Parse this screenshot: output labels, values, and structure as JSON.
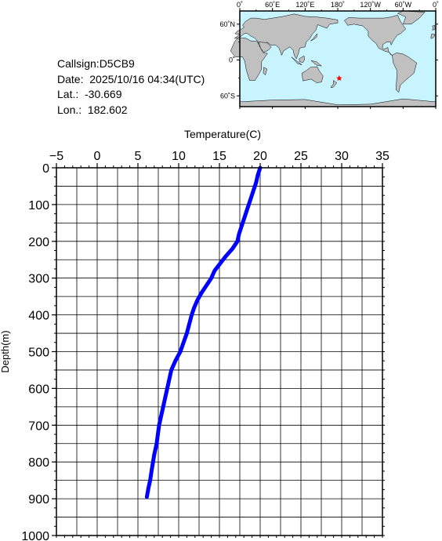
{
  "info": {
    "callsign": "Callsign:D5CB9",
    "date": "Date:  2025/10/16 04:34(UTC)",
    "lat": "Lat.:  -30.669",
    "lon": "Lon.:  182.602"
  },
  "map": {
    "lon_labels": [
      "0˚",
      "60˚E",
      "120˚E",
      "180˚",
      "120˚W",
      "60˚W",
      "0˚"
    ],
    "lat_labels": [
      "60˚N",
      "0˚",
      "60˚S"
    ],
    "station_lon": 182.602,
    "station_lat": -30.669,
    "ocean_color": "#c8f4ff",
    "land_color": "#c0c0c0",
    "marker_color": "#ff0000",
    "marker_icon": "star-icon"
  },
  "chart_data": {
    "type": "line",
    "xlabel": "Temperature(C)",
    "ylabel": "Depth(m)",
    "xlim": [
      -5,
      35
    ],
    "ylim": [
      1000,
      0
    ],
    "x_axis_position": "top",
    "y_inverted": true,
    "grid": true,
    "xticks": [
      -5,
      0,
      5,
      10,
      15,
      20,
      25,
      30,
      35
    ],
    "yticks": [
      0,
      100,
      200,
      300,
      400,
      500,
      600,
      700,
      800,
      900,
      1000
    ],
    "line_color": "#0000ff",
    "series": [
      {
        "x": [
          20.0,
          19.7,
          19.5,
          19.2,
          18.9,
          18.6,
          18.3,
          18.0,
          17.7,
          17.4,
          17.2,
          16.6,
          15.8,
          15.1,
          14.4,
          14.0,
          13.4,
          12.8,
          12.3,
          11.9,
          11.6,
          11.3,
          11.0,
          10.6,
          10.2,
          9.6,
          9.1,
          8.6,
          8.1,
          7.6,
          7.3,
          7.0,
          6.7,
          6.5,
          6.3,
          6.1
        ],
        "y": [
          0,
          20,
          40,
          60,
          80,
          100,
          120,
          140,
          160,
          180,
          200,
          220,
          240,
          260,
          280,
          300,
          320,
          340,
          360,
          380,
          400,
          425,
          450,
          475,
          500,
          525,
          550,
          600,
          650,
          700,
          750,
          780,
          820,
          850,
          870,
          895
        ]
      }
    ]
  }
}
